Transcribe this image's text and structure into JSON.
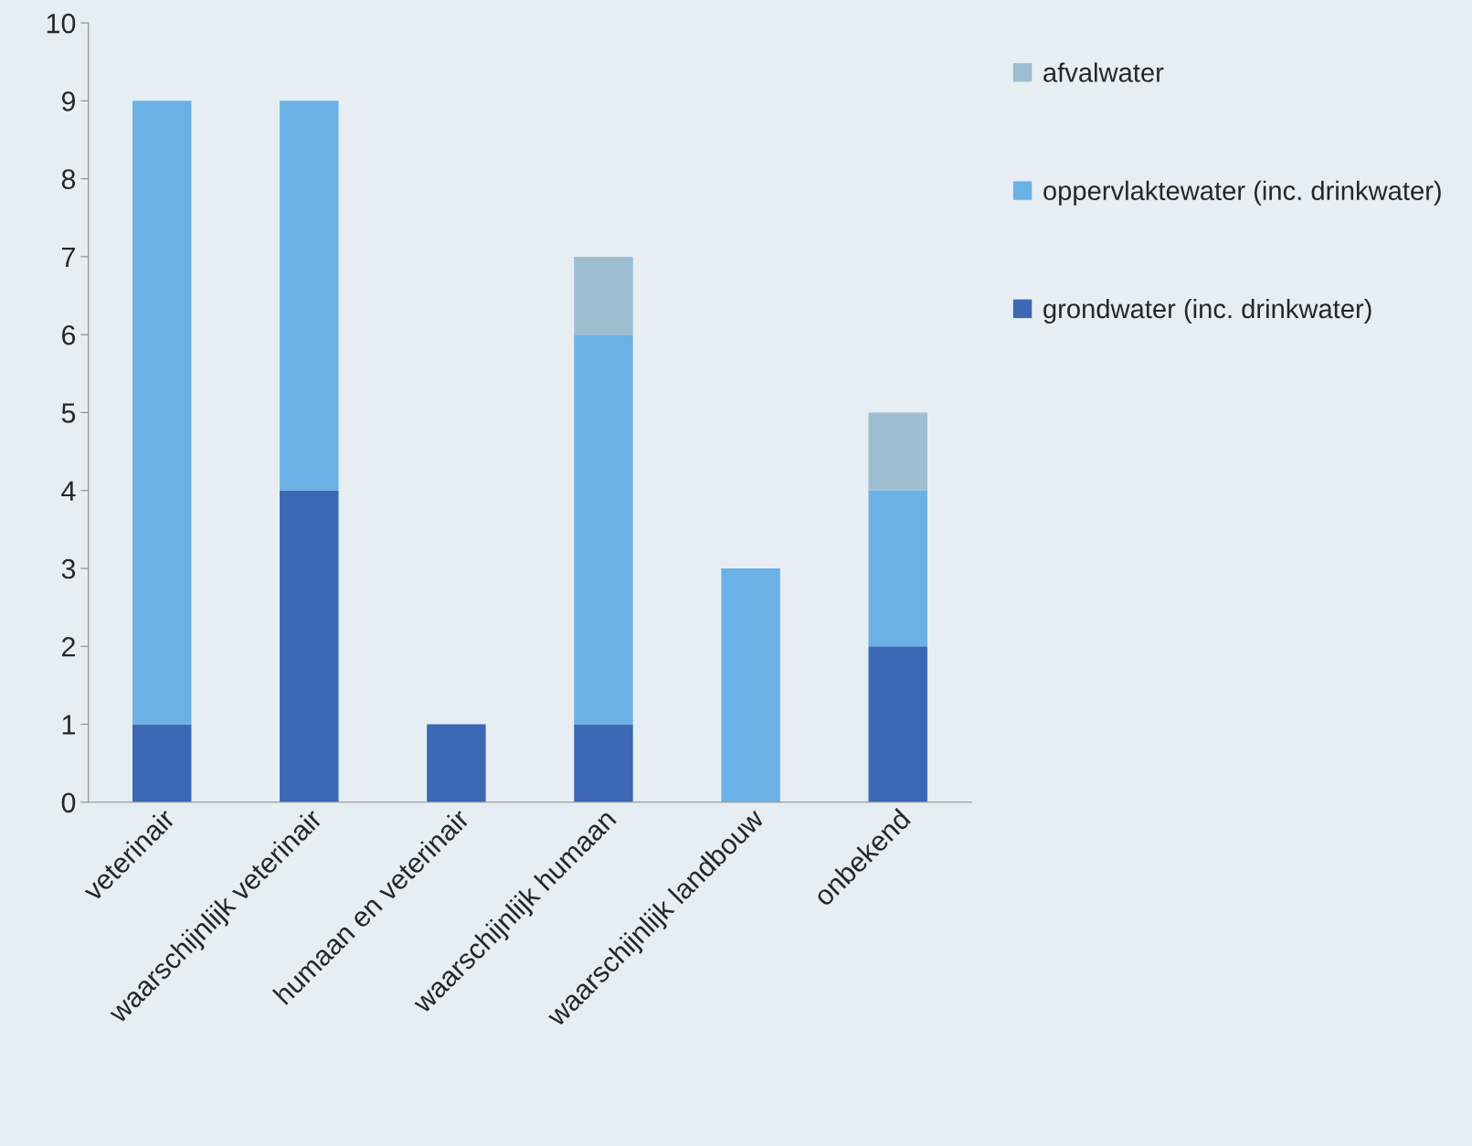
{
  "chart_data": {
    "type": "bar",
    "stacked": true,
    "categories": [
      "veterinair",
      "waarschijnlijk veterinair",
      "humaan en veterinair",
      "waarschijnlijk humaan",
      "waarschijnlijk landbouw",
      "onbekend"
    ],
    "series": [
      {
        "name": "grondwater (inc. drinkwater)",
        "color": "#3c68b5",
        "values": [
          1,
          4,
          1,
          1,
          0,
          2
        ]
      },
      {
        "name": "oppervlaktewater (inc. drinkwater)",
        "color": "#6ab2e5",
        "values": [
          8,
          5,
          0,
          5,
          3,
          2
        ]
      },
      {
        "name": "afvalwater",
        "color": "#9dbdd1",
        "values": [
          0,
          0,
          0,
          1,
          0,
          1
        ]
      }
    ],
    "ylim": [
      0,
      10
    ],
    "yticks": [
      0,
      1,
      2,
      3,
      4,
      5,
      6,
      7,
      8,
      9,
      10
    ],
    "grid": false,
    "legend": "right"
  }
}
